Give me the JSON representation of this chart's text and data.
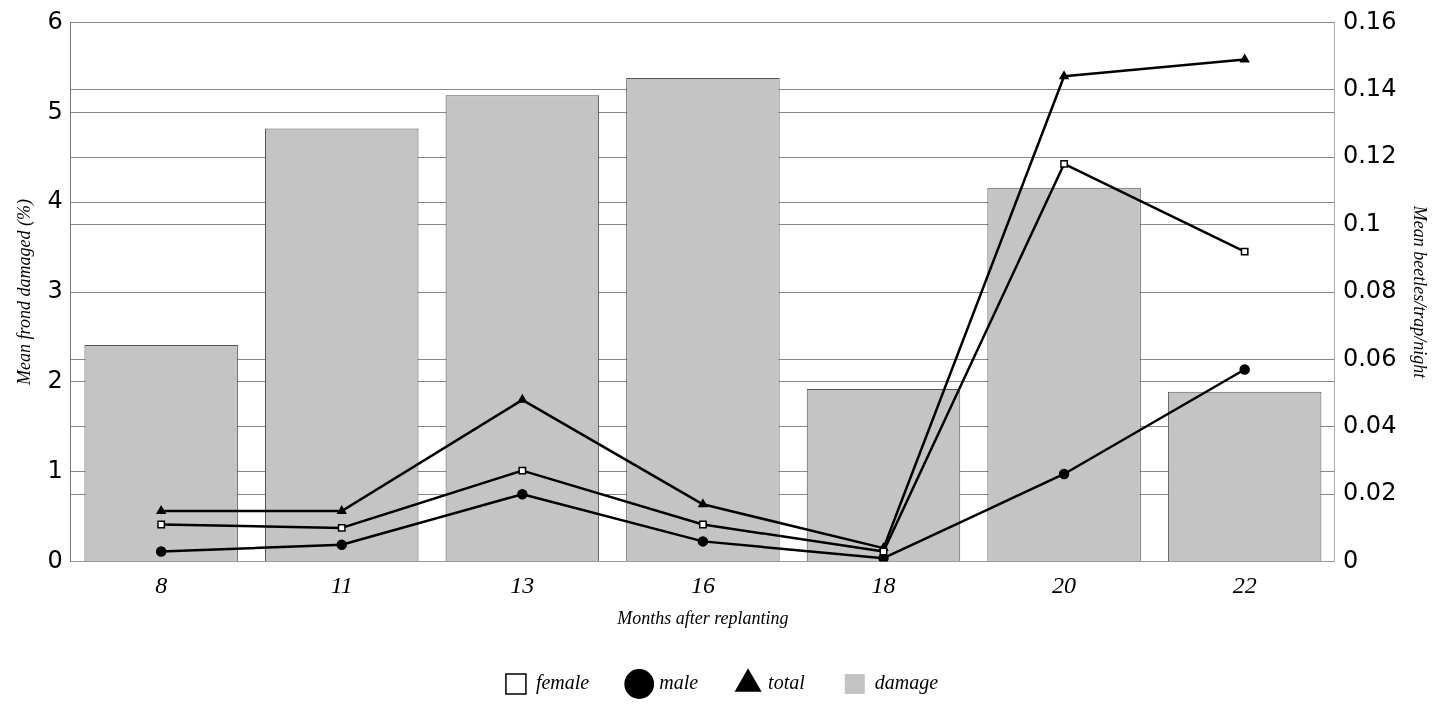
{
  "chart_data": {
    "type": "bar",
    "xlabel": "Months after replanting",
    "ylabel": "Mean frond damaged (%)",
    "y2label": "Mean beetles/trap/night",
    "categories": [
      "8",
      "11",
      "13",
      "16",
      "18",
      "20",
      "22"
    ],
    "series": [
      {
        "name": "female",
        "type": "line",
        "axis": "y2",
        "marker": "square",
        "color": "#000000",
        "values": [
          0.011,
          0.01,
          0.027,
          0.011,
          0.003,
          0.118,
          0.092
        ]
      },
      {
        "name": "male",
        "type": "line",
        "axis": "y2",
        "marker": "circle",
        "color": "#000000",
        "values": [
          0.003,
          0.005,
          0.02,
          0.006,
          0.001,
          0.026,
          0.057
        ]
      },
      {
        "name": "total",
        "type": "line",
        "axis": "y2",
        "marker": "triangle",
        "color": "#000000",
        "values": [
          0.015,
          0.015,
          0.048,
          0.017,
          0.004,
          0.144,
          0.149
        ]
      },
      {
        "name": "damage",
        "color": "#c4c4c4",
        "values": [
          2.41,
          4.82,
          5.19,
          5.38,
          1.92,
          4.16,
          1.89
        ]
      }
    ],
    "ylim": [
      0,
      6
    ],
    "yticks": [
      0,
      1,
      2,
      3,
      4,
      5,
      6
    ],
    "y2lim": [
      0,
      0.16
    ],
    "y2ticks": [
      0,
      0.02,
      0.04,
      0.06,
      0.08,
      0.1,
      0.12,
      0.14,
      0.16
    ],
    "grid": "y",
    "legend": "bottom"
  }
}
